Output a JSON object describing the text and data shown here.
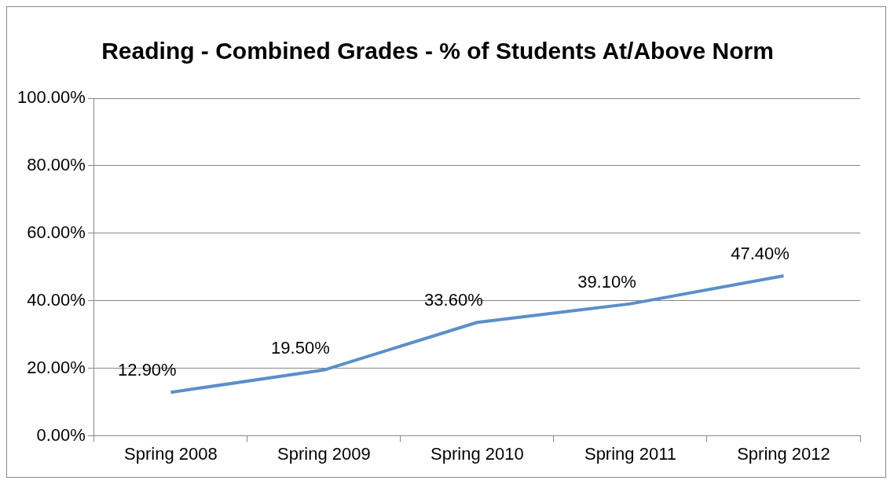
{
  "chart_data": {
    "type": "line",
    "title": "Reading - Combined Grades - % of Students At/Above Norm",
    "categories": [
      "Spring 2008",
      "Spring 2009",
      "Spring 2010",
      "Spring 2011",
      "Spring 2012"
    ],
    "series": [
      {
        "color": "#5b8fc9",
        "values": [
          12.9,
          19.5,
          33.6,
          39.1,
          47.4
        ],
        "value_labels": [
          "12.90%",
          "19.50%",
          "33.60%",
          "39.10%",
          "47.40%"
        ]
      }
    ],
    "ylim": [
      0,
      100
    ],
    "yticks": [
      {
        "value": 0,
        "label": "0.00%"
      },
      {
        "value": 20,
        "label": "20.00%"
      },
      {
        "value": 40,
        "label": "40.00%"
      },
      {
        "value": 60,
        "label": "60.00%"
      },
      {
        "value": 80,
        "label": "80.00%"
      },
      {
        "value": 100,
        "label": "100.00%"
      }
    ],
    "grid": "y",
    "legend": false,
    "marker": "none",
    "line_style": "solid"
  }
}
